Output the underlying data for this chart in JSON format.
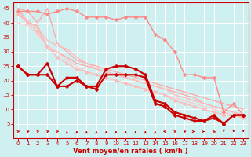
{
  "background_color": "#cff0f0",
  "grid_color": "#ffffff",
  "xlabel": "Vent moyen/en rafales ( km/h )",
  "xlabel_color": "#cc0000",
  "tick_color": "#cc0000",
  "xlim": [
    -0.5,
    23.5
  ],
  "ylim": [
    0,
    47
  ],
  "yticks": [
    5,
    10,
    15,
    20,
    25,
    30,
    35,
    40,
    45
  ],
  "xticks": [
    0,
    1,
    2,
    3,
    4,
    5,
    6,
    7,
    8,
    9,
    10,
    11,
    12,
    13,
    14,
    15,
    16,
    17,
    18,
    19,
    20,
    21,
    22,
    23
  ],
  "series": [
    {
      "x": [
        0,
        1,
        2,
        3,
        4,
        5,
        6,
        7,
        8,
        9,
        10,
        11,
        12,
        13,
        14,
        15,
        16,
        17,
        18,
        19,
        20,
        21,
        22,
        23
      ],
      "y": [
        45,
        44,
        40,
        45,
        33,
        30,
        27,
        26,
        25,
        24,
        23,
        22,
        21,
        20,
        19,
        18,
        17,
        16,
        15,
        14,
        13,
        12,
        11,
        10
      ],
      "color": "#ffaaaa",
      "marker": null,
      "markersize": 0,
      "linewidth": 1.0
    },
    {
      "x": [
        0,
        1,
        2,
        3,
        4,
        5,
        6,
        7,
        8,
        9,
        10,
        11,
        12,
        13,
        14,
        15,
        16,
        17,
        18,
        19,
        20,
        21,
        22,
        23
      ],
      "y": [
        45,
        40,
        39,
        31,
        30,
        28,
        26,
        25,
        24,
        23,
        22,
        21,
        20,
        19,
        18,
        17,
        16,
        15,
        14,
        12,
        11,
        10,
        9,
        8
      ],
      "color": "#ffaaaa",
      "marker": null,
      "markersize": 0,
      "linewidth": 1.0
    },
    {
      "x": [
        0,
        1,
        2,
        3,
        4,
        5,
        6,
        7,
        8,
        9,
        10,
        11,
        12,
        13,
        14,
        15,
        16,
        17,
        18,
        19,
        20,
        21,
        22,
        23
      ],
      "y": [
        43,
        41,
        38,
        34,
        32,
        31,
        28,
        26,
        24,
        23,
        22,
        21,
        20,
        19,
        18,
        17,
        15,
        14,
        13,
        12,
        11,
        10,
        9,
        8
      ],
      "color": "#ffbbbb",
      "marker": null,
      "markersize": 0,
      "linewidth": 1.0
    },
    {
      "x": [
        0,
        1,
        2,
        3,
        4,
        5,
        6,
        7,
        8,
        9,
        10,
        11,
        12,
        13,
        14,
        15,
        16,
        17,
        18,
        19,
        20,
        21,
        22,
        23
      ],
      "y": [
        40,
        39,
        36,
        32,
        30,
        27,
        25,
        23,
        22,
        21,
        20,
        19,
        18,
        17,
        16,
        15,
        14,
        13,
        12,
        11,
        10,
        9,
        8,
        7
      ],
      "color": "#ffcccc",
      "marker": null,
      "markersize": 0,
      "linewidth": 1.0
    },
    {
      "x": [
        0,
        1,
        2,
        3,
        4,
        5,
        6,
        7,
        8,
        9,
        10,
        11,
        12,
        13,
        14,
        15,
        16,
        17,
        18,
        19,
        20,
        21,
        22,
        23
      ],
      "y": [
        43,
        40,
        37,
        32,
        28,
        26,
        24,
        23,
        22,
        21,
        20,
        19,
        18,
        17,
        16,
        15,
        13,
        12,
        11,
        10,
        9,
        8,
        8,
        7
      ],
      "color": "#ffbbbb",
      "marker": "D",
      "markersize": 2.5,
      "linewidth": 1.0
    },
    {
      "x": [
        0,
        1,
        2,
        3,
        4,
        5,
        6,
        7,
        8,
        9,
        10,
        11,
        12,
        13,
        14,
        15,
        16,
        17,
        18,
        19,
        20,
        21,
        22,
        23
      ],
      "y": [
        44,
        44,
        44,
        43,
        44,
        45,
        44,
        42,
        42,
        42,
        41,
        42,
        42,
        42,
        36,
        34,
        30,
        22,
        22,
        21,
        21,
        9,
        12,
        8
      ],
      "color": "#ff8888",
      "marker": "D",
      "markersize": 2.5,
      "linewidth": 1.0
    },
    {
      "x": [
        0,
        1,
        2,
        3,
        4,
        5,
        6,
        7,
        8,
        9,
        10,
        11,
        12,
        13,
        14,
        15,
        16,
        17,
        18,
        19,
        20,
        21,
        22,
        23
      ],
      "y": [
        25,
        22,
        22,
        26,
        18,
        21,
        21,
        18,
        18,
        24,
        25,
        25,
        24,
        22,
        13,
        12,
        9,
        8,
        7,
        6,
        8,
        5,
        8,
        8
      ],
      "color": "#cc0000",
      "marker": "D",
      "markersize": 2.5,
      "linewidth": 1.5
    },
    {
      "x": [
        0,
        1,
        2,
        3,
        4,
        5,
        6,
        7,
        8,
        9,
        10,
        11,
        12,
        13,
        14,
        15,
        16,
        17,
        18,
        19,
        20,
        21,
        22,
        23
      ],
      "y": [
        25,
        22,
        22,
        22,
        18,
        18,
        20,
        18,
        17,
        22,
        22,
        22,
        22,
        21,
        12,
        11,
        8,
        7,
        6,
        6,
        7,
        5,
        8,
        8
      ],
      "color": "#cc0000",
      "marker": "D",
      "markersize": 2.5,
      "linewidth": 1.5
    }
  ],
  "wind_x": [
    0,
    1,
    2,
    3,
    4,
    5,
    6,
    7,
    8,
    9,
    10,
    11,
    12,
    13,
    14,
    15,
    16,
    17,
    18,
    19,
    20,
    21,
    22,
    23
  ],
  "wind_angles_deg": [
    45,
    45,
    45,
    45,
    45,
    0,
    0,
    0,
    0,
    0,
    0,
    0,
    0,
    0,
    0,
    315,
    45,
    45,
    90,
    90,
    135,
    180,
    180,
    180
  ]
}
